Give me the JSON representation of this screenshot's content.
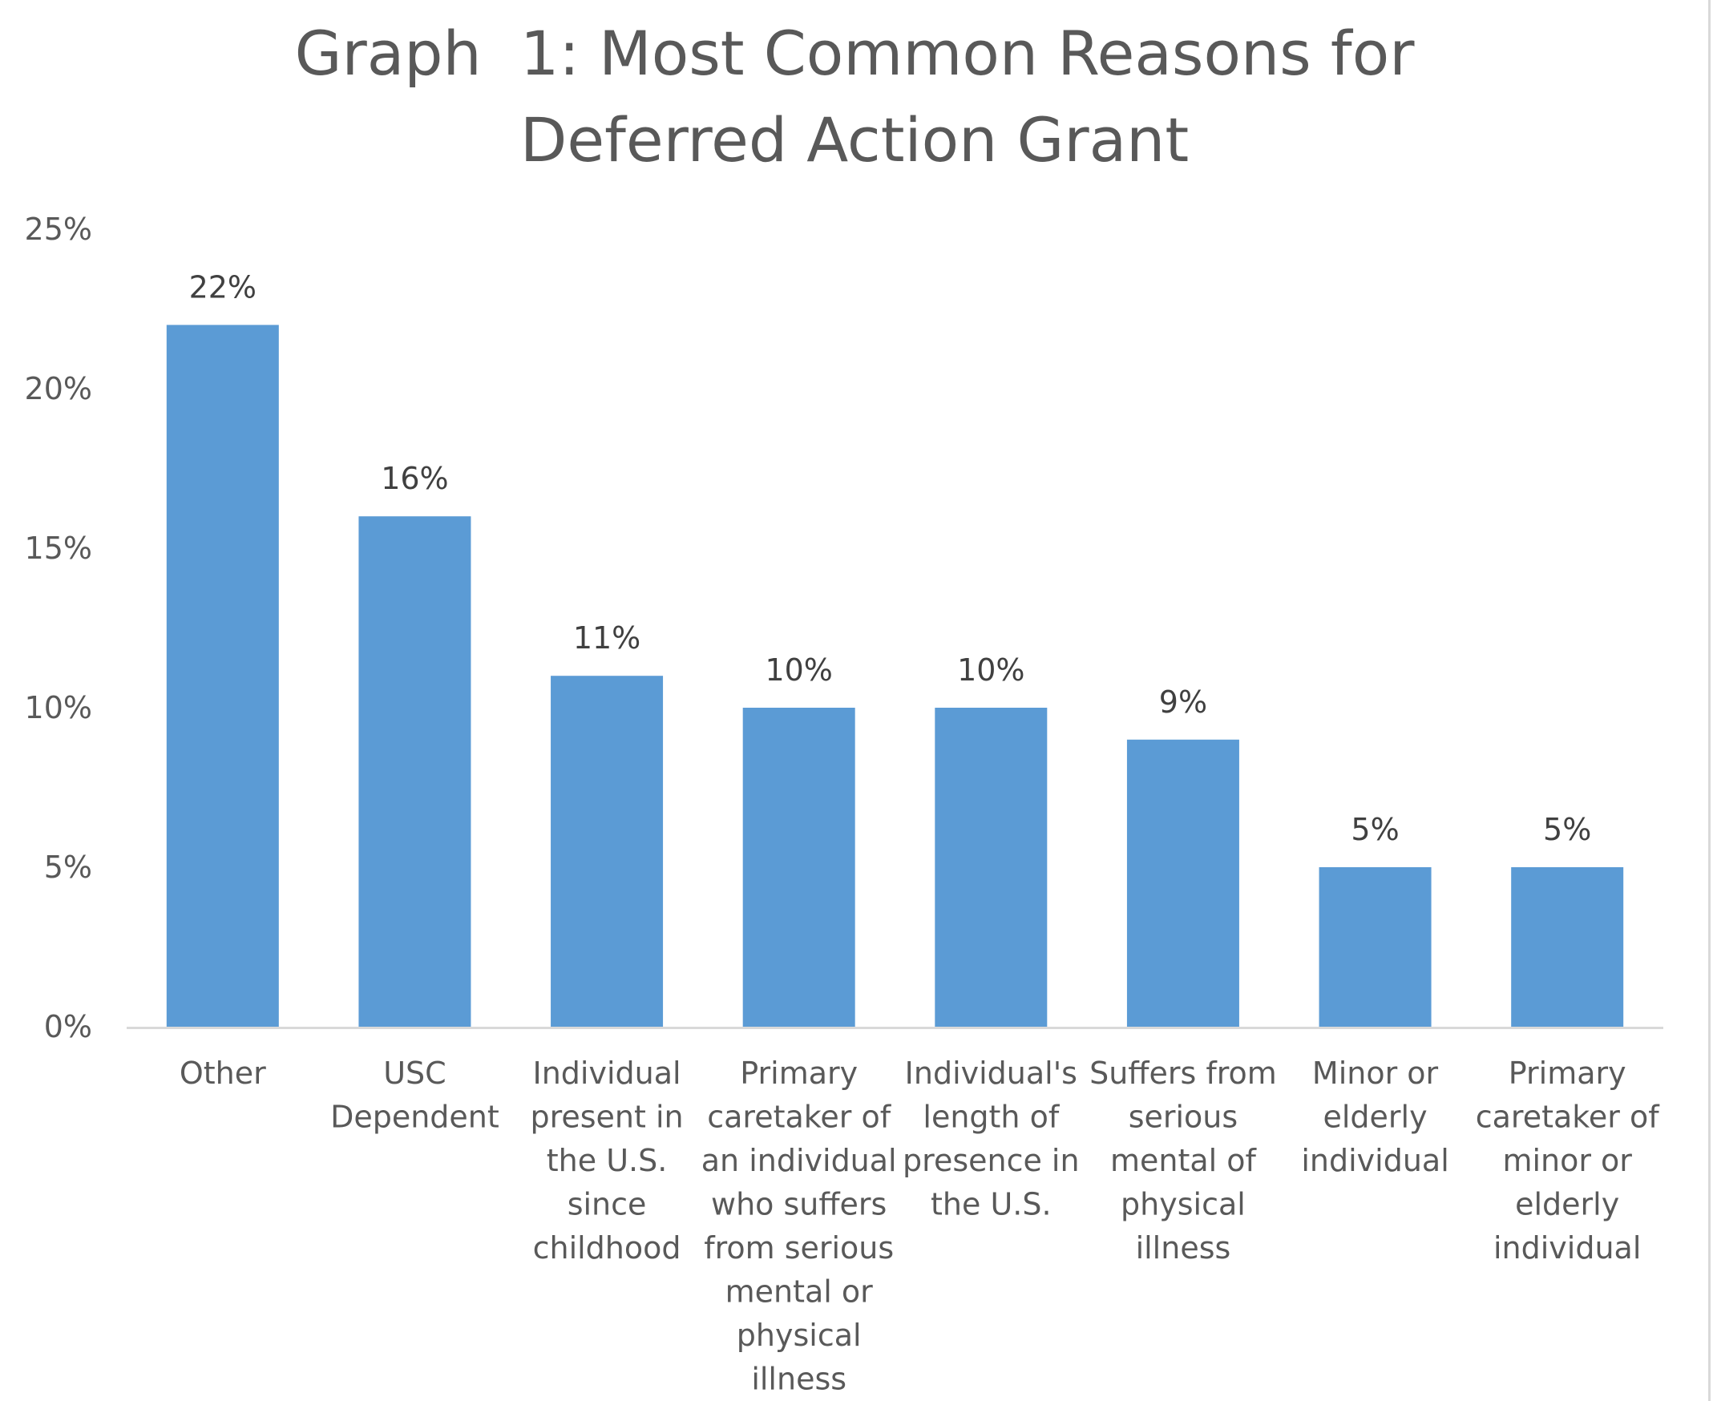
{
  "chart_data": {
    "type": "bar",
    "title_lines": [
      "Graph  1: Most Common Reasons for",
      "Deferred Action Grant"
    ],
    "categories": [
      [
        "Other"
      ],
      [
        "USC",
        "Dependent"
      ],
      [
        "Individual",
        "present in",
        "the U.S.",
        "since",
        "childhood"
      ],
      [
        "Primary",
        "caretaker of",
        "an individual",
        "who suffers",
        "from serious",
        "mental or",
        "physical",
        "illness"
      ],
      [
        "Individual's",
        "length of",
        "presence in",
        "the U.S."
      ],
      [
        "Suffers from",
        "serious",
        "mental of",
        "physical",
        "illness"
      ],
      [
        "Minor or",
        "elderly",
        "individual"
      ],
      [
        "Primary",
        "caretaker of",
        "minor or",
        "elderly",
        "individual"
      ]
    ],
    "values": [
      22,
      16,
      11,
      10,
      10,
      9,
      5,
      5
    ],
    "data_labels": [
      "22%",
      "16%",
      "11%",
      "10%",
      "10%",
      "9%",
      "5%",
      "5%"
    ],
    "y_ticks": [
      "0%",
      "5%",
      "10%",
      "15%",
      "20%",
      "25%"
    ],
    "ylim": [
      0,
      25
    ],
    "xlabel": "",
    "ylabel": "",
    "grid": false,
    "legend": "none",
    "bar_color": "#5b9bd5",
    "axis_color": "#d9d9d9"
  }
}
